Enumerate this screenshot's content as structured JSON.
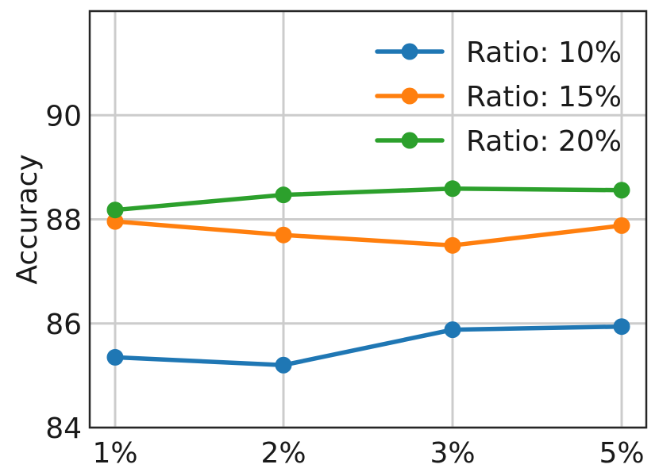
{
  "chart_data": {
    "type": "line",
    "categories": [
      "1%",
      "2%",
      "3%",
      "5%"
    ],
    "ylabel": "Accuracy",
    "xlabel": "",
    "title": "",
    "ylim": [
      84,
      92
    ],
    "yticks": [
      84,
      86,
      88,
      90
    ],
    "grid": true,
    "legend_position": "top-right",
    "series": [
      {
        "name": "Ratio: 10%",
        "color": "#1f77b4",
        "values": [
          85.35,
          85.2,
          85.88,
          85.94
        ]
      },
      {
        "name": "Ratio: 15%",
        "color": "#ff7f0e",
        "values": [
          87.96,
          87.7,
          87.5,
          87.88
        ]
      },
      {
        "name": "Ratio: 20%",
        "color": "#2ca02c",
        "values": [
          88.18,
          88.47,
          88.59,
          88.56
        ]
      }
    ]
  }
}
